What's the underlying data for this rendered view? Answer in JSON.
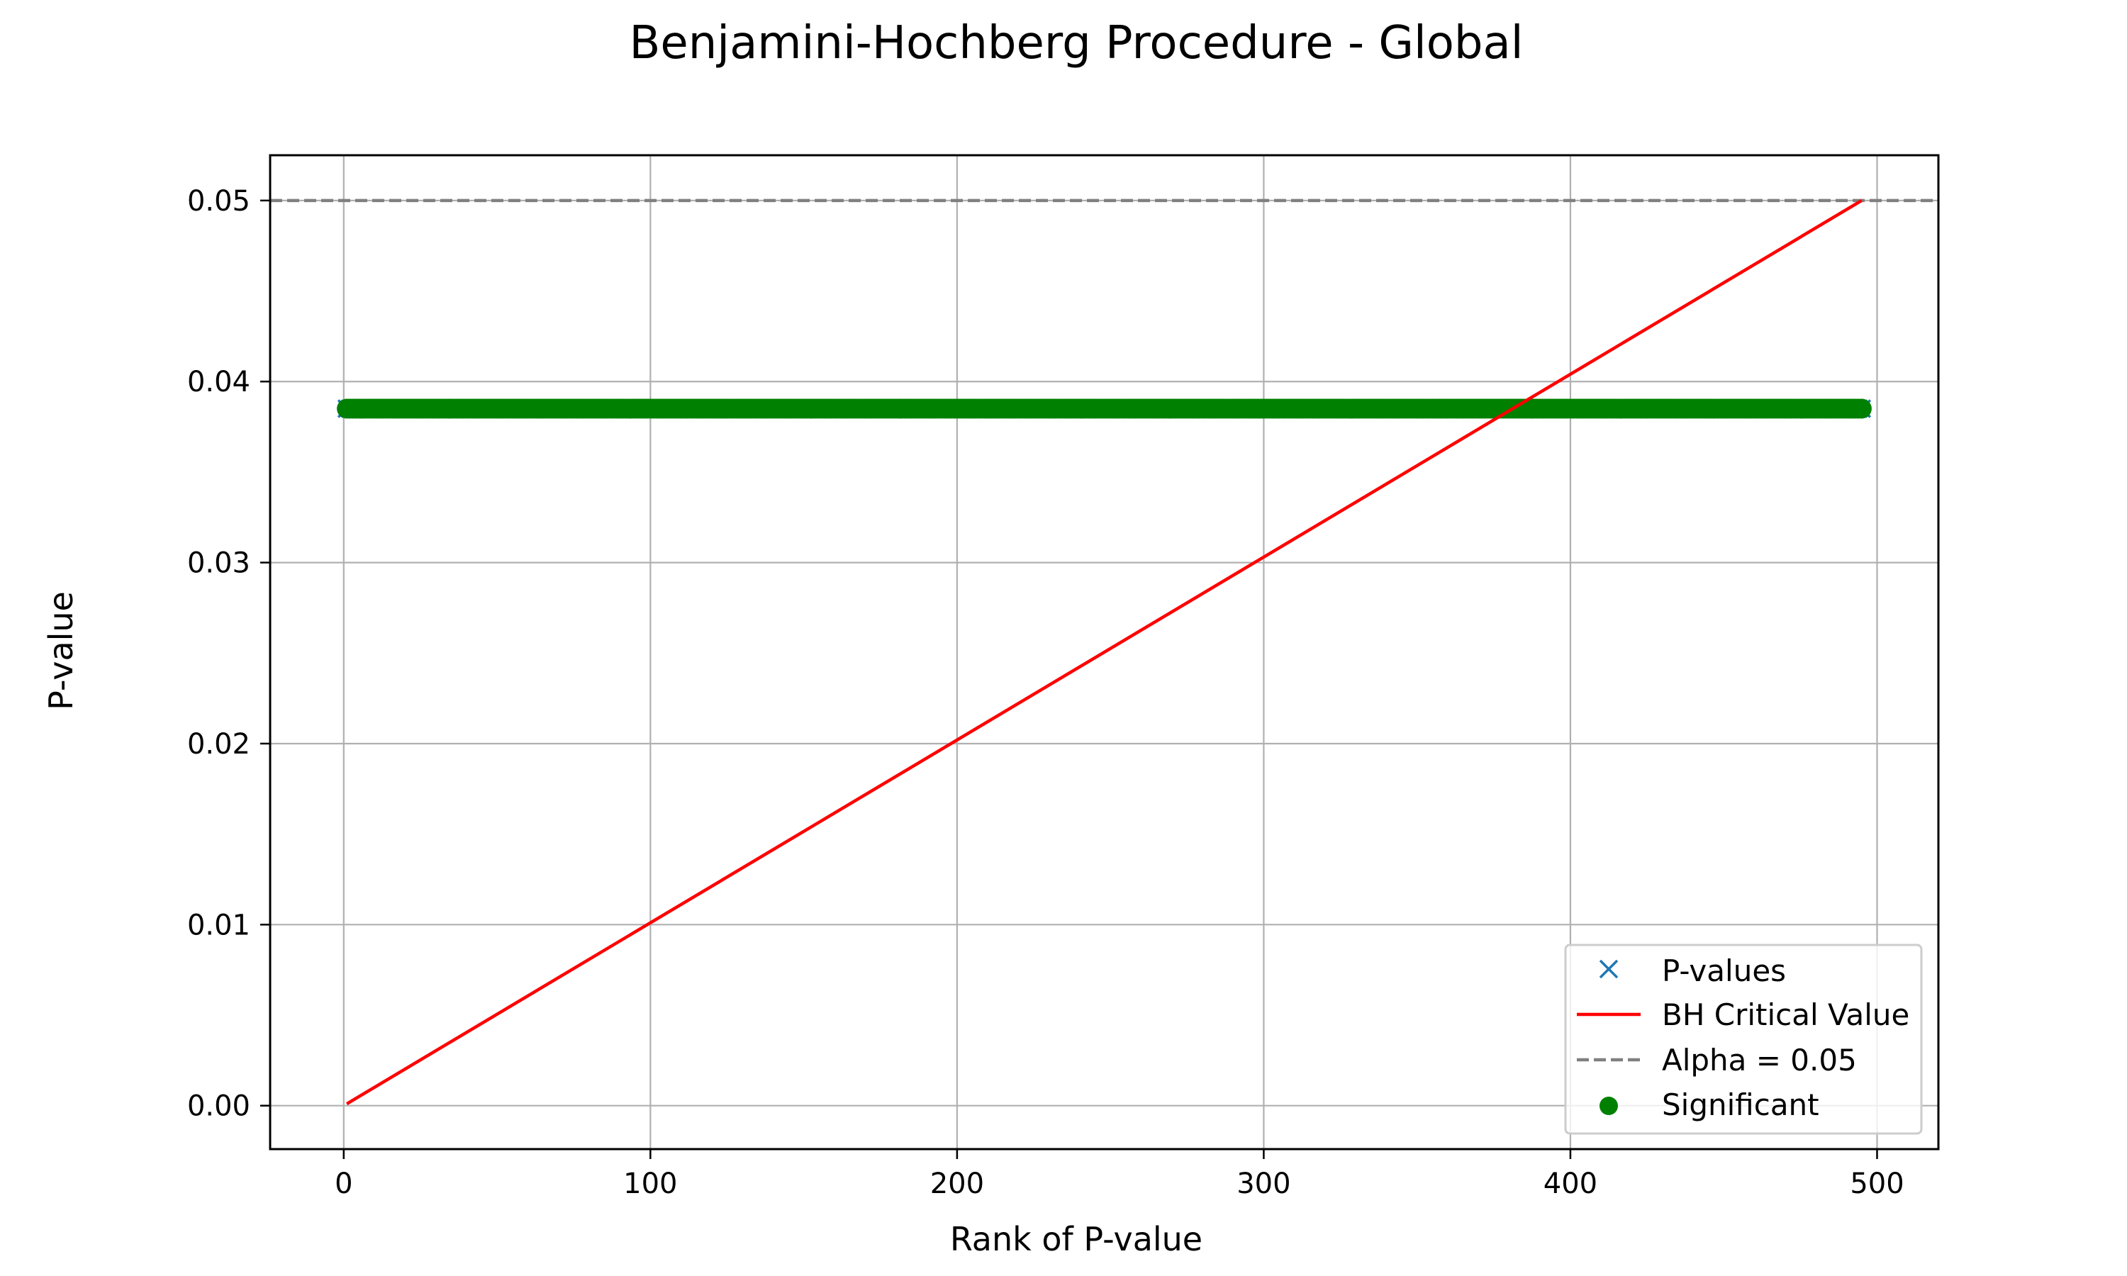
{
  "chart_data": {
    "type": "scatter",
    "title": "Benjamini-Hochberg Procedure - Global",
    "xlabel": "Rank of P-value",
    "ylabel": "P-value",
    "xlim": [
      -24,
      520
    ],
    "ylim": [
      -0.0024,
      0.0525
    ],
    "xticks": [
      0,
      100,
      200,
      300,
      400,
      500
    ],
    "xtick_labels": [
      "0",
      "100",
      "200",
      "300",
      "400",
      "500"
    ],
    "yticks": [
      0.0,
      0.01,
      0.02,
      0.03,
      0.04,
      0.05
    ],
    "ytick_labels": [
      "0.00",
      "0.01",
      "0.02",
      "0.03",
      "0.04",
      "0.05"
    ],
    "grid": true,
    "legend_position": "lower-right",
    "num_tests": 495,
    "series": [
      {
        "name": "P-values",
        "kind": "marker-x",
        "color": "#1f77b4",
        "x_range": [
          1,
          495
        ],
        "y": 0.0385
      },
      {
        "name": "BH Critical Value",
        "kind": "line",
        "color": "#ff0000",
        "x": [
          1,
          495
        ],
        "y": [
          0.000101,
          0.05
        ]
      },
      {
        "name": "Alpha = 0.05",
        "kind": "hline-dashed",
        "color": "#808080",
        "y": 0.05
      },
      {
        "name": "Significant",
        "kind": "marker-dot",
        "color": "#008000",
        "x_range": [
          1,
          495
        ],
        "y": 0.0385
      }
    ]
  }
}
